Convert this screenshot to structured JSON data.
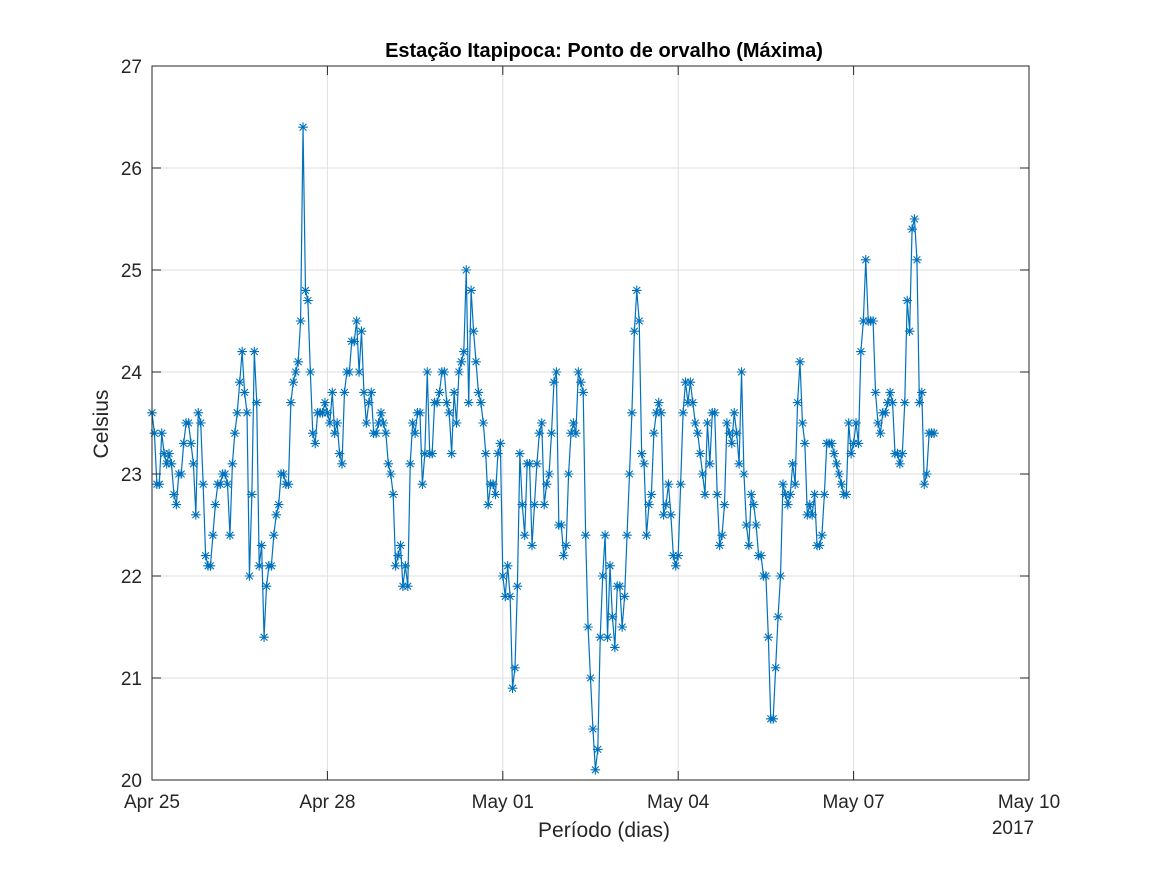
{
  "chart_data": {
    "type": "line",
    "title": "Estação Itapipoca: Ponto de orvalho (Máxima)",
    "xlabel": "Período (dias)",
    "ylabel": "Celsius",
    "x_year_label": "2017",
    "x_start": "2017-04-25",
    "x_ticks": [
      {
        "day": 0,
        "label": "Apr 25"
      },
      {
        "day": 3,
        "label": "Apr 28"
      },
      {
        "day": 6,
        "label": "May 01"
      },
      {
        "day": 9,
        "label": "May 04"
      },
      {
        "day": 12,
        "label": "May 07"
      },
      {
        "day": 15,
        "label": "May 10"
      }
    ],
    "xlim_days": [
      0,
      15
    ],
    "ylim": [
      20,
      27
    ],
    "y_ticks": [
      20,
      21,
      22,
      23,
      24,
      25,
      26,
      27
    ],
    "grid": true,
    "series": [
      {
        "color": "#0072BD",
        "marker": "asterisk",
        "x_step_hours": 1,
        "values": [
          23.6,
          23.4,
          22.9,
          22.9,
          23.4,
          23.2,
          23.1,
          23.2,
          23.1,
          22.8,
          22.7,
          23.0,
          23.0,
          23.3,
          23.5,
          23.5,
          23.3,
          23.1,
          22.6,
          23.6,
          23.5,
          22.9,
          22.2,
          22.1,
          22.1,
          22.4,
          22.7,
          22.9,
          22.9,
          23.0,
          23.0,
          22.9,
          22.4,
          23.1,
          23.4,
          23.6,
          23.9,
          24.2,
          23.8,
          23.6,
          22.0,
          22.8,
          24.2,
          23.7,
          22.1,
          22.3,
          21.4,
          21.9,
          22.1,
          22.1,
          22.4,
          22.6,
          22.7,
          23.0,
          23.0,
          22.9,
          22.9,
          23.7,
          23.9,
          24.0,
          24.1,
          24.5,
          26.4,
          24.8,
          24.7,
          24.0,
          23.4,
          23.3,
          23.6,
          23.6,
          23.6,
          23.7,
          23.6,
          23.5,
          23.8,
          23.4,
          23.5,
          23.2,
          23.1,
          23.8,
          24.0,
          24.0,
          24.3,
          24.3,
          24.5,
          24.0,
          24.4,
          23.8,
          23.5,
          23.7,
          23.8,
          23.4,
          23.4,
          23.5,
          23.6,
          23.5,
          23.4,
          23.1,
          23.0,
          22.8,
          22.1,
          22.2,
          22.3,
          21.9,
          22.1,
          21.9,
          23.1,
          23.5,
          23.4,
          23.6,
          23.6,
          22.9,
          23.2,
          24.0,
          23.2,
          23.2,
          23.7,
          23.7,
          23.8,
          24.0,
          24.0,
          23.7,
          23.6,
          23.2,
          23.8,
          23.5,
          24.0,
          24.1,
          24.2,
          25.0,
          23.7,
          24.8,
          24.4,
          24.1,
          23.8,
          23.7,
          23.5,
          23.2,
          22.7,
          22.9,
          22.9,
          22.8,
          23.2,
          23.3,
          22.0,
          21.8,
          22.1,
          21.8,
          20.9,
          21.1,
          21.9,
          23.2,
          22.7,
          22.4,
          23.1,
          23.1,
          22.3,
          22.7,
          23.1,
          23.4,
          23.5,
          22.7,
          22.9,
          23.0,
          23.4,
          23.9,
          24.0,
          22.5,
          22.5,
          22.2,
          22.3,
          23.0,
          23.4,
          23.5,
          23.4,
          24.0,
          23.9,
          23.8,
          22.4,
          21.5,
          21.0,
          20.5,
          20.1,
          20.3,
          21.4,
          22.0,
          22.4,
          21.4,
          22.1,
          21.6,
          21.3,
          21.9,
          21.9,
          21.5,
          21.8,
          22.4,
          23.0,
          23.6,
          24.4,
          24.8,
          24.5,
          23.2,
          23.1,
          22.4,
          22.7,
          22.8,
          23.4,
          23.6,
          23.7,
          23.6,
          22.6,
          22.7,
          22.9,
          22.6,
          22.2,
          22.1,
          22.2,
          22.9,
          23.6,
          23.9,
          23.7,
          23.9,
          23.7,
          23.5,
          23.4,
          23.2,
          23.0,
          22.8,
          23.5,
          23.1,
          23.6,
          23.6,
          22.8,
          22.3,
          22.4,
          22.7,
          23.5,
          23.4,
          23.3,
          23.6,
          23.4,
          23.1,
          24.0,
          23.0,
          22.5,
          22.3,
          22.8,
          22.7,
          22.5,
          22.2,
          22.2,
          22.0,
          22.0,
          21.4,
          20.6,
          20.6,
          21.1,
          21.6,
          22.0,
          22.9,
          22.8,
          22.7,
          22.8,
          23.1,
          22.9,
          23.7,
          24.1,
          23.5,
          23.3,
          22.6,
          22.7,
          22.6,
          22.8,
          22.3,
          22.3,
          22.4,
          22.8,
          23.3,
          23.3,
          23.3,
          23.2,
          23.1,
          23.0,
          22.9,
          22.8,
          22.8,
          23.5,
          23.2,
          23.3,
          23.5,
          23.3,
          24.2,
          24.5,
          25.1,
          24.5,
          24.5,
          24.5,
          23.8,
          23.5,
          23.4,
          23.6,
          23.6,
          23.7,
          23.8,
          23.7,
          23.2,
          23.2,
          23.1,
          23.2,
          23.7,
          24.7,
          24.4,
          25.4,
          25.5,
          25.1,
          23.7,
          23.8,
          22.9,
          23.0,
          23.4,
          23.4,
          23.4
        ]
      }
    ]
  }
}
